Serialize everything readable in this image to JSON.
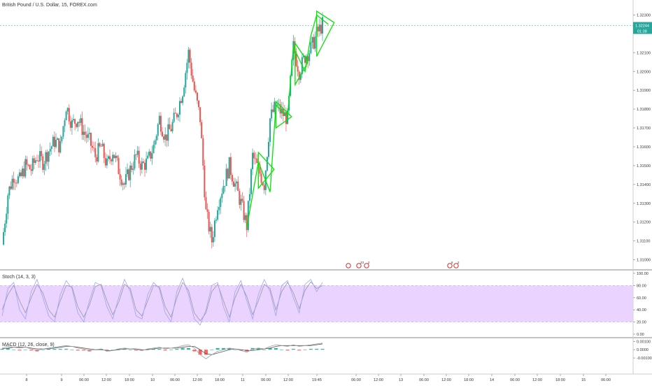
{
  "header": {
    "symbol_title": "British Pound / U.S. Dollar, 15, FOREX.com"
  },
  "chart_data": {
    "type": "candlestick",
    "main_pane": {
      "y_axis_ticks": [
        "1.32300",
        "1.32100",
        "1.32000",
        "1.31900",
        "1.31800",
        "1.31700",
        "1.31600",
        "1.31500",
        "1.31400",
        "1.31300",
        "1.31200",
        "1.31100",
        "1.31000"
      ],
      "ylim": [
        1.3095,
        1.3235
      ],
      "last_price": "1.32244",
      "countdown": "01:38",
      "price_path": [
        1.3108,
        1.3135,
        1.3145,
        1.3142,
        1.315,
        1.3148,
        1.3155,
        1.3152,
        1.3158,
        1.3163,
        1.316,
        1.3182,
        1.3172,
        1.3175,
        1.3168,
        1.3163,
        1.3155,
        1.316,
        1.315,
        1.3158,
        1.3148,
        1.314,
        1.3148,
        1.3155,
        1.315,
        1.3152,
        1.316,
        1.3175,
        1.3165,
        1.317,
        1.3178,
        1.319,
        1.321,
        1.319,
        1.3175,
        1.3125,
        1.311,
        1.313,
        1.314,
        1.315,
        1.314,
        1.313,
        1.3118,
        1.3155,
        1.3148,
        1.314,
        1.3175,
        1.3182,
        1.3178,
        1.3175,
        1.3213,
        1.32,
        1.3208,
        1.3212,
        1.322,
        1.3225
      ],
      "bullish_color": "#26a69a",
      "bearish_color": "#ef5350",
      "pattern_color": "#00e600",
      "event_markers": [
        {
          "time": "11 · 06:00",
          "labels": [
            "23",
            "2"
          ]
        },
        {
          "time": "13 · 06:00",
          "labels": [
            "6",
            "2"
          ]
        }
      ]
    },
    "stoch_pane": {
      "label": "Stoch (14, 3, 3)",
      "y_axis_ticks": [
        "100.00",
        "80.00",
        "60.00",
        "40.00",
        "20.00",
        "0.00"
      ],
      "ylim": [
        0,
        100
      ],
      "band": [
        20,
        80
      ],
      "band_color": "#e6ccff",
      "k_values": [
        30,
        75,
        85,
        40,
        25,
        70,
        90,
        60,
        30,
        20,
        65,
        88,
        75,
        35,
        20,
        55,
        85,
        80,
        45,
        25,
        60,
        90,
        70,
        30,
        25,
        65,
        85,
        75,
        35,
        20,
        70,
        92,
        65,
        25,
        15,
        40,
        80,
        85,
        45,
        20,
        70,
        88,
        55,
        25,
        65,
        90,
        70,
        30,
        80,
        88,
        60,
        35,
        82,
        90,
        70,
        85
      ],
      "d_values": [
        40,
        65,
        80,
        55,
        35,
        60,
        82,
        68,
        40,
        28,
        55,
        80,
        78,
        45,
        28,
        48,
        78,
        82,
        55,
        32,
        52,
        82,
        75,
        40,
        30,
        55,
        80,
        78,
        45,
        28,
        60,
        85,
        72,
        35,
        22,
        35,
        70,
        82,
        55,
        28,
        60,
        82,
        62,
        32,
        55,
        82,
        75,
        40,
        70,
        85,
        68,
        42,
        72,
        86,
        75,
        80
      ],
      "k_color": "#a0a0ff",
      "d_color": "#999999"
    },
    "macd_pane": {
      "label": "MACD (12, 26, close, 9)",
      "y_axis_ticks": [
        "0.00100",
        "0.0000",
        "-0.00100"
      ],
      "ylim": [
        -0.0015,
        0.0012
      ],
      "macd_values": [
        0.0002,
        0.0004,
        0.0003,
        0.0002,
        0.0003,
        0.0001,
        -0.0001,
        0.0001,
        0.0002,
        0.0003,
        0.0004,
        0.0005,
        0.0004,
        0.0002,
        0.0001,
        -0.0001,
        0.0,
        0.0001,
        -0.0002,
        -0.0001,
        0.0001,
        0.0002,
        0.0001,
        0.0,
        -0.0001,
        0.0001,
        0.0002,
        0.0003,
        0.0001,
        0.0002,
        0.0003,
        0.0005,
        0.0006,
        0.0002,
        -0.0006,
        -0.0011,
        -0.0006,
        -0.0002,
        0.0,
        0.0002,
        0.0001,
        -0.0001,
        -0.0003,
        0.0001,
        0.0002,
        0.0001,
        0.0004,
        0.0006,
        0.0005,
        0.0004,
        0.0006,
        0.0004,
        0.0005,
        0.0006,
        0.0007,
        0.0008
      ],
      "signal_values": [
        0.0001,
        0.0002,
        0.0003,
        0.0003,
        0.0003,
        0.0002,
        0.0001,
        0.0001,
        0.0001,
        0.0002,
        0.0003,
        0.0004,
        0.0004,
        0.0003,
        0.0002,
        0.0001,
        0.0,
        0.0,
        -0.0001,
        -0.0001,
        0.0,
        0.0001,
        0.0001,
        0.0001,
        0.0,
        0.0,
        0.0001,
        0.0002,
        0.0002,
        0.0002,
        0.0002,
        0.0003,
        0.0004,
        0.0004,
        0.0,
        -0.0005,
        -0.0006,
        -0.0004,
        -0.0002,
        0.0,
        0.0001,
        0.0,
        -0.0001,
        -0.0001,
        0.0,
        0.0001,
        0.0002,
        0.0004,
        0.0005,
        0.0005,
        0.0005,
        0.0005,
        0.0005,
        0.0005,
        0.0006,
        0.0007
      ],
      "macd_color": "#9e9e9e",
      "signal_color": "#555555",
      "hist_pos_color": "#26a69a",
      "hist_neg_color": "#ef5350"
    },
    "x_axis_ticks": [
      "8",
      "9",
      "06:00",
      "12:00",
      "18:00",
      "10",
      "06:00",
      "12:00",
      "18:00",
      "11",
      "06:00",
      "12:00",
      "19:45",
      "06:00",
      "12:00",
      "13",
      "06:00",
      "12:00",
      "18:00",
      "14",
      "06:00",
      "12:00",
      "18:00",
      "15",
      "06:00"
    ]
  }
}
